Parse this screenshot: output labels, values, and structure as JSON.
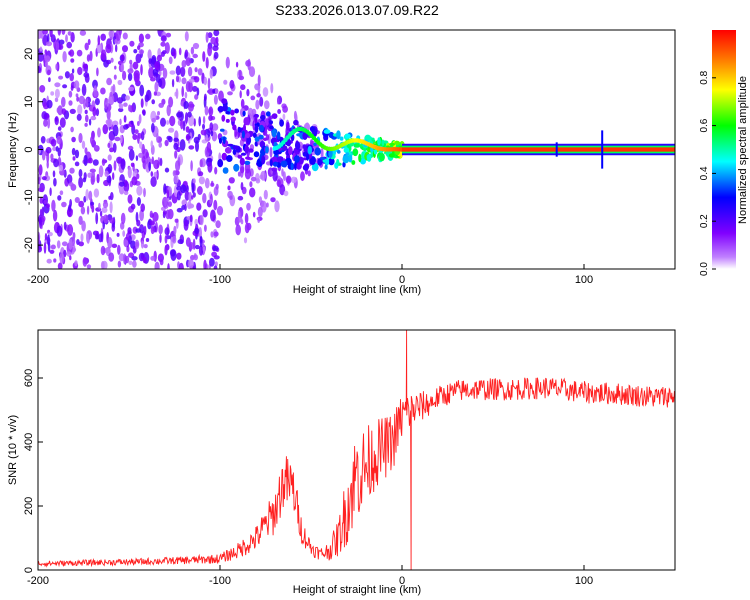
{
  "figure_title": "S233.2026.013.07.09.R22",
  "chart_data": [
    {
      "type": "heatmap",
      "panel": "spectrogram",
      "title": "S233.2026.013.07.09.R22",
      "xlabel": "Height of straight line (km)",
      "ylabel": "Frequency (Hz)",
      "xlim": [
        -200,
        150
      ],
      "ylim": [
        -25,
        25
      ],
      "xticks": [
        -200,
        -100,
        0,
        100
      ],
      "yticks": [
        -20,
        -10,
        0,
        10,
        20
      ],
      "colorbar": {
        "label": "Normalized spectral amplitude",
        "range": [
          0,
          1
        ],
        "ticks": [
          0.0,
          0.2,
          0.4,
          0.6,
          0.8
        ],
        "colors": [
          "#ffffff",
          "#8000ff",
          "#0000ff",
          "#00ffff",
          "#00ff00",
          "#ffff00",
          "#ff8000",
          "#ff0000"
        ]
      },
      "description_values": {
        "noise_region_x": [
          -200,
          -50
        ],
        "noise_amplitude_max": 0.35,
        "signal_line_frequency": 0,
        "signal_line_start_x": 0,
        "signal_line_amplitude": 0.95,
        "transition_region_x": [
          -100,
          0
        ],
        "isolated_spikes_x": [
          85,
          110
        ]
      }
    },
    {
      "type": "line",
      "panel": "snr",
      "xlabel": "Height of straight line (km)",
      "ylabel": "SNR (10 * v/v)",
      "xlim": [
        -200,
        150
      ],
      "ylim": [
        0,
        750
      ],
      "xticks": [
        -200,
        -100,
        0,
        100
      ],
      "yticks": [
        0,
        200,
        400,
        600
      ],
      "series": [
        {
          "name": "SNR",
          "color": "#ff2020",
          "x": [
            -200,
            -150,
            -120,
            -100,
            -90,
            -80,
            -70,
            -65,
            -60,
            -55,
            -50,
            -45,
            -40,
            -35,
            -30,
            -25,
            -20,
            -15,
            -10,
            -5,
            0,
            5,
            10,
            15,
            20,
            30,
            40,
            50,
            60,
            80,
            100,
            120,
            140,
            150
          ],
          "values": [
            20,
            25,
            30,
            35,
            60,
            100,
            180,
            280,
            260,
            120,
            70,
            50,
            60,
            100,
            200,
            300,
            320,
            360,
            380,
            400,
            480,
            500,
            510,
            520,
            540,
            560,
            565,
            565,
            565,
            570,
            555,
            550,
            540,
            545
          ],
          "noise_amplitude": [
            8,
            10,
            12,
            15,
            25,
            40,
            70,
            90,
            80,
            40,
            25,
            20,
            30,
            60,
            120,
            150,
            130,
            110,
            100,
            90,
            80,
            60,
            50,
            40,
            35,
            35,
            35,
            35,
            35,
            35,
            35,
            35,
            35,
            35
          ]
        }
      ],
      "annotations": [
        {
          "x": 2.5,
          "value": 750,
          "note": "spike"
        },
        {
          "x": 5,
          "value": 0,
          "note": "dropout"
        }
      ]
    }
  ]
}
